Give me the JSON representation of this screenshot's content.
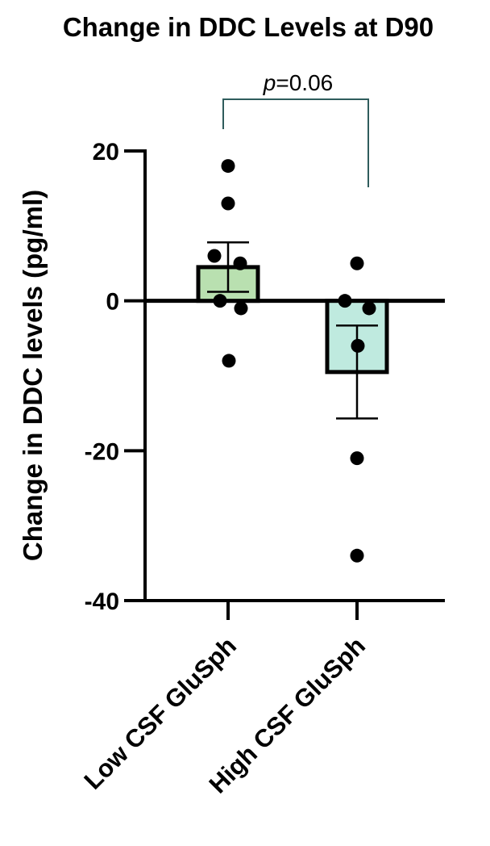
{
  "chart_data": {
    "type": "bar",
    "title": "Change in DDC Levels at D90",
    "ylabel": "Change in DDC levels (pg/ml)",
    "xlabel": "",
    "ylim": [
      -40,
      20
    ],
    "yticks": [
      20,
      0,
      -20,
      -40
    ],
    "categories": [
      "Low CSF GluSph",
      "High CSF GluSph"
    ],
    "series": [
      {
        "values": [
          4.5,
          -9.5
        ],
        "sem": [
          3.3,
          6.2
        ],
        "fill_colors": [
          "#b9e0b0",
          "#bfeadf"
        ],
        "points": [
          [
            18,
            13,
            6,
            5,
            0,
            -1,
            -8
          ],
          [
            5,
            0,
            -1,
            -6,
            -21,
            -34
          ]
        ]
      }
    ],
    "significance": {
      "p_label": "p",
      "p_value": "=0.06",
      "between": [
        0,
        1
      ],
      "bracket_color": "#2f5c5c"
    },
    "grid": false,
    "legend": "none"
  }
}
